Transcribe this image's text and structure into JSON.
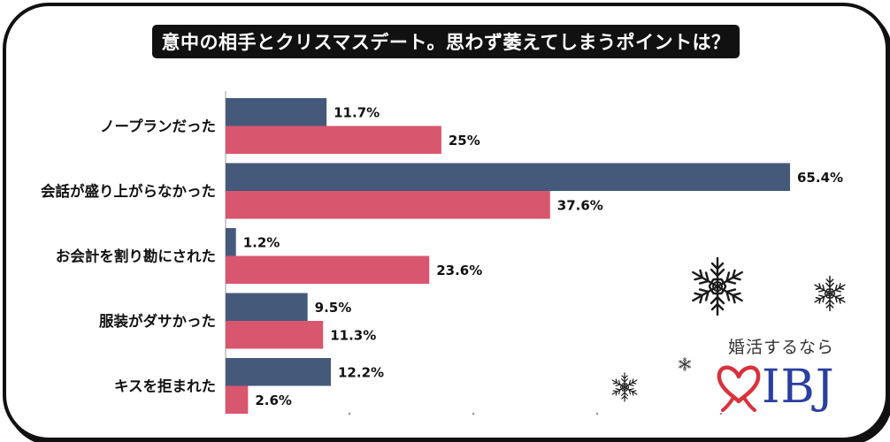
{
  "title": "意中の相手とクリスマスデート。思わず萎えてしまうポイントは？",
  "colors": {
    "series1": "#455a7b",
    "series2": "#d9566f",
    "brand": "#2b3f9e",
    "heart": "#d8323d"
  },
  "logo": {
    "tagline": "婚活するなら",
    "wordmark": "IBJ"
  },
  "chart_data": {
    "type": "bar",
    "orientation": "horizontal",
    "title": "意中の相手とクリスマスデート。思わず萎えてしまうポイントは？",
    "categories": [
      "ノープランだった",
      "会話が盛り上がらなかった",
      "お会計を割り勘にされた",
      "服装がダサかった",
      "キスを拒まれた"
    ],
    "series": [
      {
        "values": [
          11.7,
          65.4,
          1.2,
          9.5,
          12.2
        ],
        "labels": [
          "11.7%",
          "65.4%",
          "1.2%",
          "9.5%",
          "12.2%"
        ]
      },
      {
        "values": [
          25,
          37.6,
          23.6,
          11.3,
          2.6
        ],
        "labels": [
          "25%",
          "37.6%",
          "23.6%",
          "11.3%",
          "2.6%"
        ]
      }
    ],
    "xlim": [
      0,
      65.4
    ],
    "grid": false,
    "legend": "none"
  }
}
